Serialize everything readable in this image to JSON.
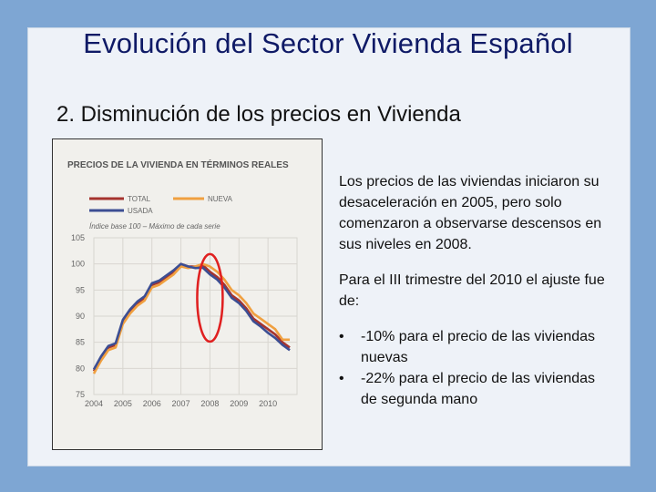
{
  "slide": {
    "title": "Evolución del Sector Vivienda Español",
    "subtitle": "2. Disminución de los precios en Vivienda",
    "paragraph1": "Los precios de las viviendas iniciaron su desaceleración en 2005, pero solo comenzaron a observarse descensos en sus niveles en 2008.",
    "paragraph2": "Para el III trimestre del 2010 el ajuste fue de:",
    "bullets": [
      "-10% para el precio de las viviendas nuevas",
      "-22% para el precio de las viviendas de segunda mano"
    ],
    "bullet_glyph": "•"
  },
  "colors": {
    "background": "#7ea6d3",
    "title": "#0f1a66",
    "total": "#a5332e",
    "nueva": "#f0a040",
    "usada": "#3c4e93",
    "highlight": "#e02020"
  },
  "chart_data": {
    "type": "line",
    "title": "PRECIOS DE LA VIVIENDA EN TÉRMINOS REALES",
    "note": "Índice base 100 – Máximo de cada serie",
    "ylim": [
      75,
      105
    ],
    "yticks": [
      105,
      100,
      95,
      90,
      85,
      80,
      75
    ],
    "xlim": [
      2004,
      2011
    ],
    "xticks": [
      "2004",
      "2005",
      "2006",
      "2007",
      "2008",
      "2009",
      "2010"
    ],
    "grid": true,
    "legend_position": "top",
    "x": [
      2004.0,
      2004.25,
      2004.5,
      2004.75,
      2005.0,
      2005.25,
      2005.5,
      2005.75,
      2006.0,
      2006.25,
      2006.5,
      2006.75,
      2007.0,
      2007.25,
      2007.5,
      2007.75,
      2008.0,
      2008.25,
      2008.5,
      2008.75,
      2009.0,
      2009.25,
      2009.5,
      2009.75,
      2010.0,
      2010.25,
      2010.5,
      2010.75
    ],
    "series": [
      {
        "name": "TOTAL",
        "color": "#a5332e",
        "values": [
          79.5,
          82,
          84,
          84.5,
          89,
          91,
          92.5,
          93.5,
          96,
          96.5,
          97.5,
          98.5,
          100,
          99.5,
          99.5,
          99.8,
          98.5,
          97.5,
          96,
          94,
          93,
          91.5,
          89.5,
          88.5,
          87.5,
          86.5,
          85,
          84
        ]
      },
      {
        "name": "NUEVA",
        "color": "#f0a040",
        "values": [
          79,
          81.5,
          83.5,
          84,
          88.5,
          90.5,
          92,
          93,
          95.5,
          96,
          97,
          98,
          99.5,
          99.2,
          99.5,
          100,
          99.5,
          98.5,
          97,
          95,
          94,
          92.5,
          90.5,
          89.5,
          88.5,
          87.5,
          85.5,
          85.5
        ]
      },
      {
        "name": "USADA",
        "color": "#3c4e93",
        "values": [
          79.8,
          82.3,
          84.3,
          84.8,
          89.3,
          91.3,
          92.8,
          93.8,
          96.3,
          96.8,
          97.8,
          98.8,
          100,
          99.5,
          99.2,
          99.3,
          98,
          97,
          95.5,
          93.5,
          92.5,
          91,
          89,
          88,
          86.8,
          85.8,
          84.5,
          83.5
        ]
      }
    ],
    "annotation": {
      "type": "ellipse",
      "center_x": 2008.0,
      "center_y": 93.5,
      "color": "#e02020"
    }
  }
}
